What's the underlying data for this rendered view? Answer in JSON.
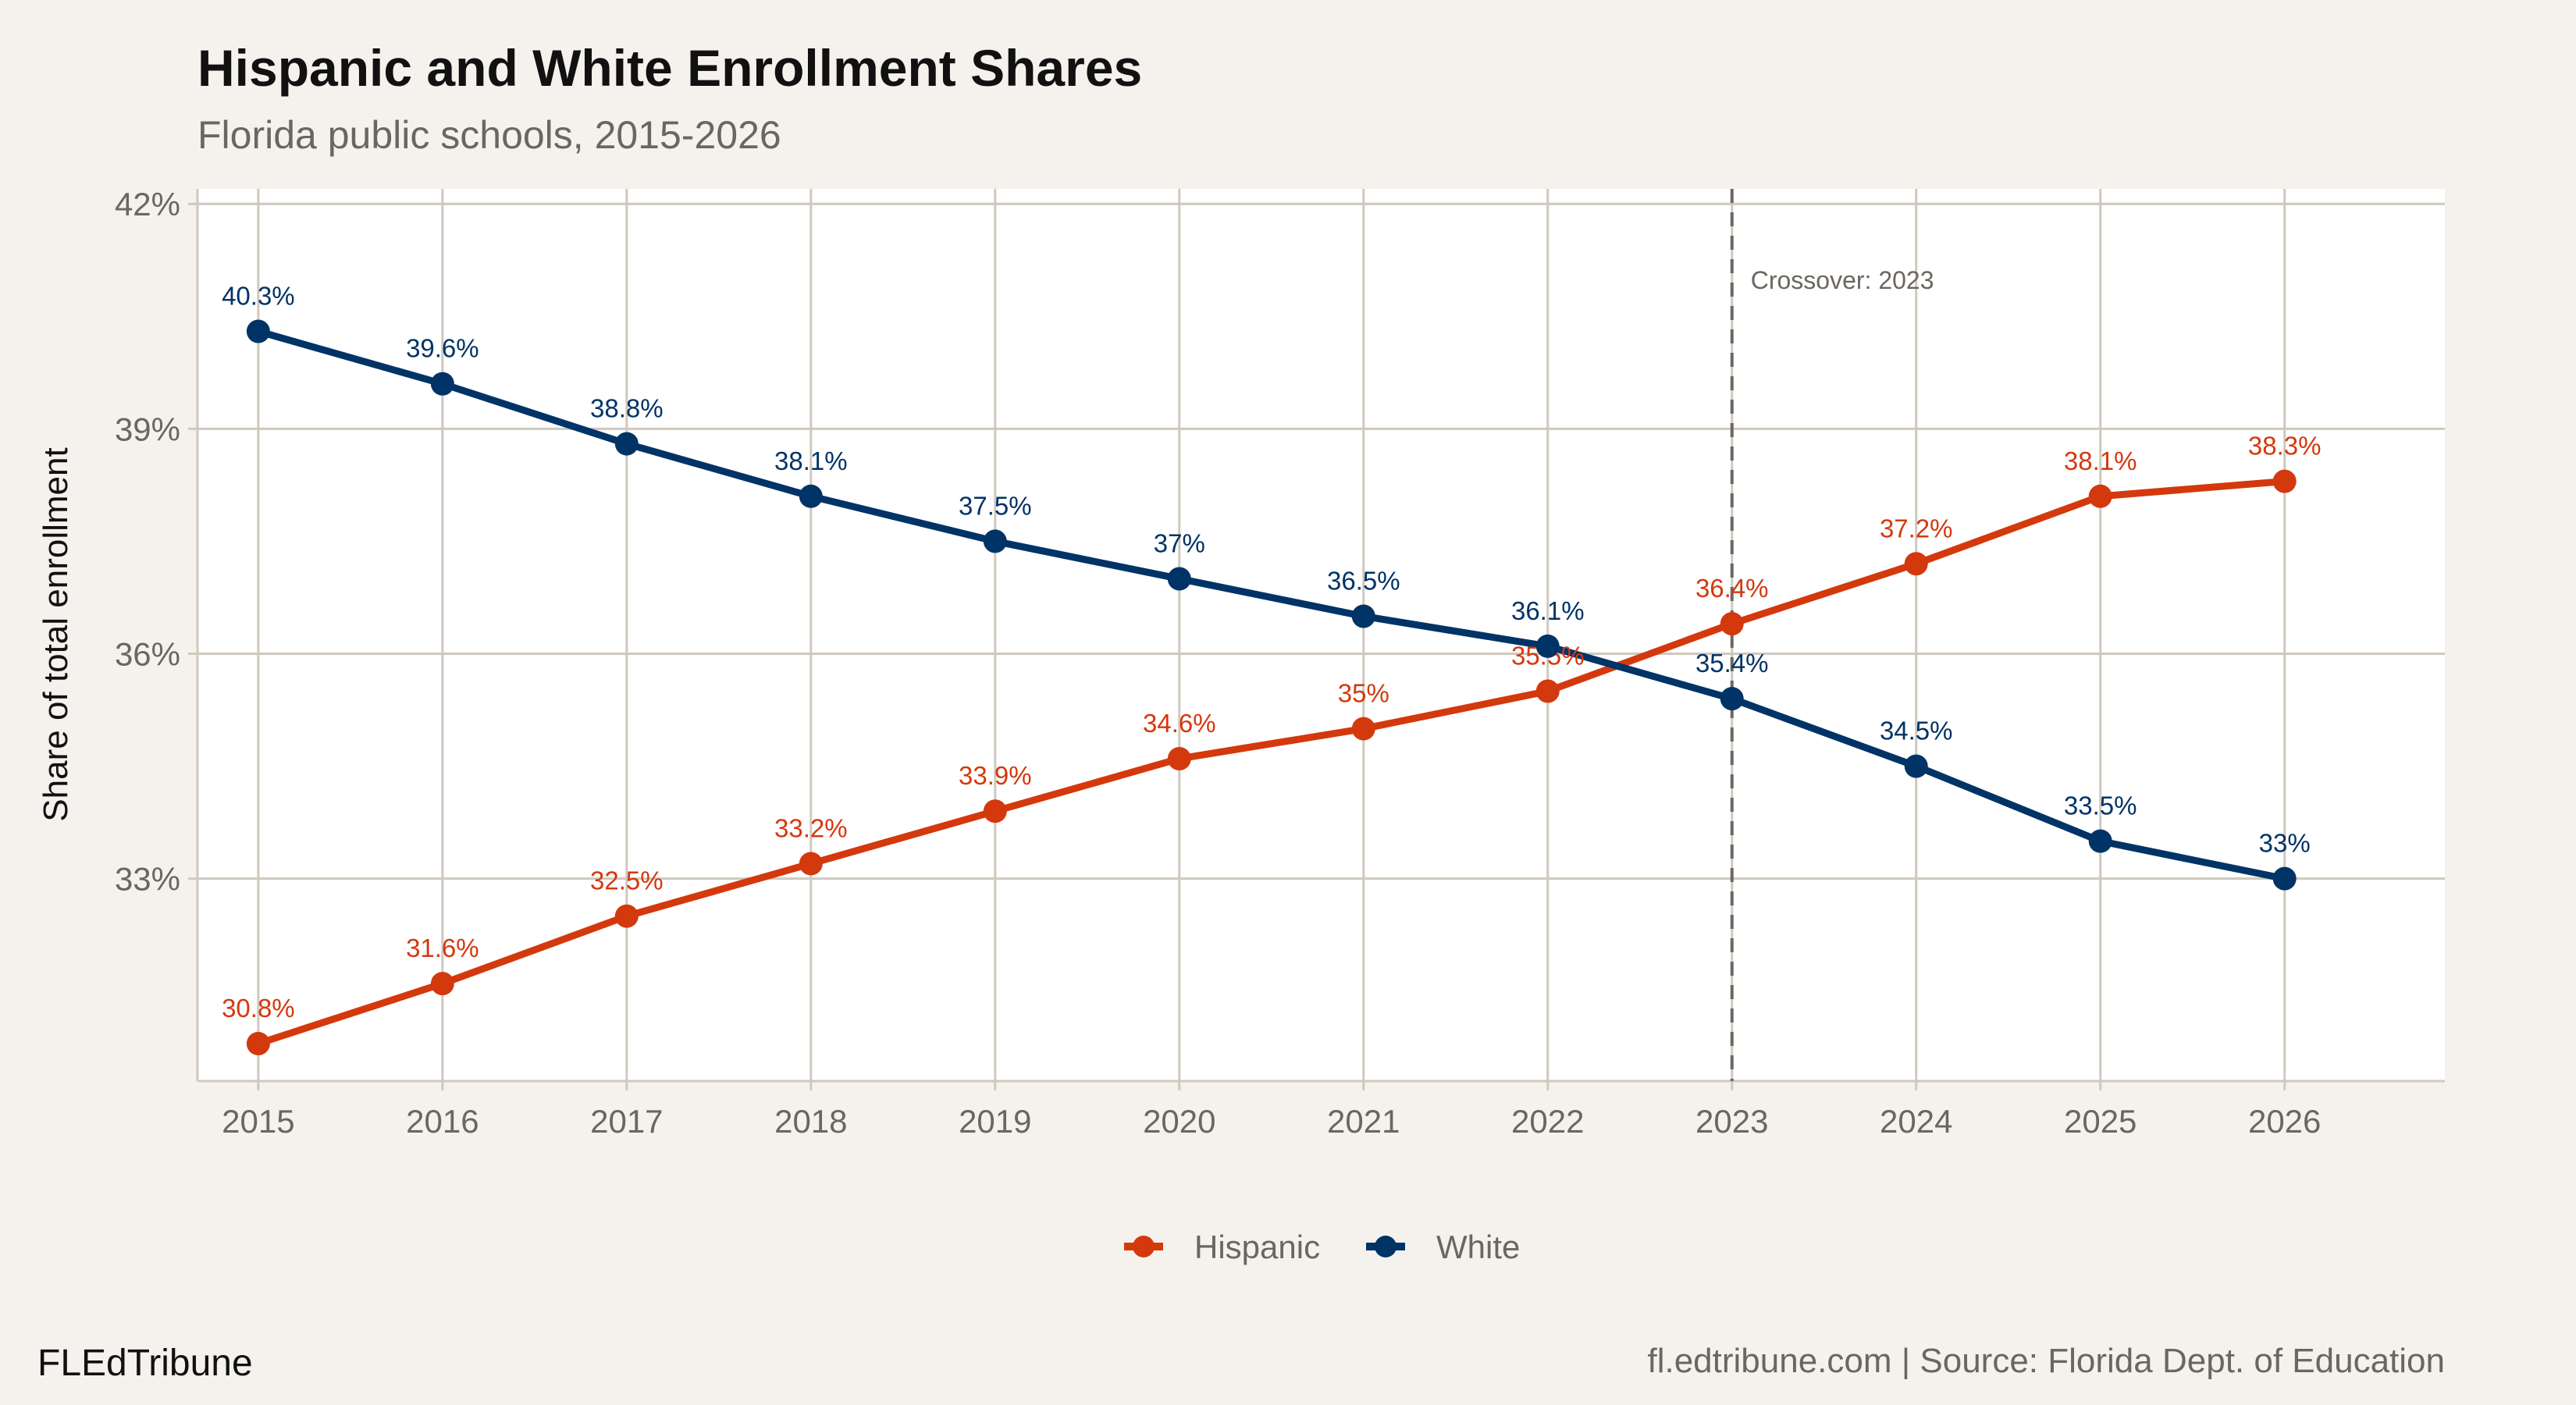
{
  "chart_data": {
    "type": "line",
    "title": "Hispanic and White Enrollment Shares",
    "subtitle": "Florida public schools, 2015-2026",
    "xlabel": "",
    "ylabel": "Share of total enrollment",
    "x": [
      2015,
      2016,
      2017,
      2018,
      2019,
      2020,
      2021,
      2022,
      2023,
      2024,
      2025,
      2026
    ],
    "x_ticks": [
      "2015",
      "2016",
      "2017",
      "2018",
      "2019",
      "2020",
      "2021",
      "2022",
      "2023",
      "2024",
      "2025",
      "2026"
    ],
    "y_ticks": [
      33,
      36,
      39,
      42
    ],
    "y_tick_labels": [
      "33%",
      "36%",
      "39%",
      "42%"
    ],
    "ylim": [
      30.3,
      42.2
    ],
    "xlim": [
      2014.67,
      2026.87
    ],
    "grid": true,
    "legend_position": "bottom",
    "series": [
      {
        "name": "Hispanic",
        "color": "#D4380D",
        "values": [
          30.8,
          31.6,
          32.5,
          33.2,
          33.9,
          34.6,
          35.0,
          35.5,
          36.4,
          37.2,
          38.1,
          38.3
        ],
        "labels": [
          "30.8%",
          "31.6%",
          "32.5%",
          "33.2%",
          "33.9%",
          "34.6%",
          "35%",
          "35.5%",
          "36.4%",
          "37.2%",
          "38.1%",
          "38.3%"
        ]
      },
      {
        "name": "White",
        "color": "#003366",
        "values": [
          40.3,
          39.6,
          38.8,
          38.1,
          37.5,
          37.0,
          36.5,
          36.1,
          35.4,
          34.5,
          33.5,
          33.0
        ],
        "labels": [
          "40.3%",
          "39.6%",
          "38.8%",
          "38.1%",
          "37.5%",
          "37%",
          "36.5%",
          "36.1%",
          "35.4%",
          "34.5%",
          "33.5%",
          "33%"
        ]
      }
    ],
    "annotations": [
      {
        "x": 2023,
        "text": "Crossover: 2023",
        "line": "dashed"
      }
    ]
  },
  "footer": {
    "brand": "FLEdTribune",
    "source": "fl.edtribune.com | Source: Florida Dept. of Education"
  }
}
